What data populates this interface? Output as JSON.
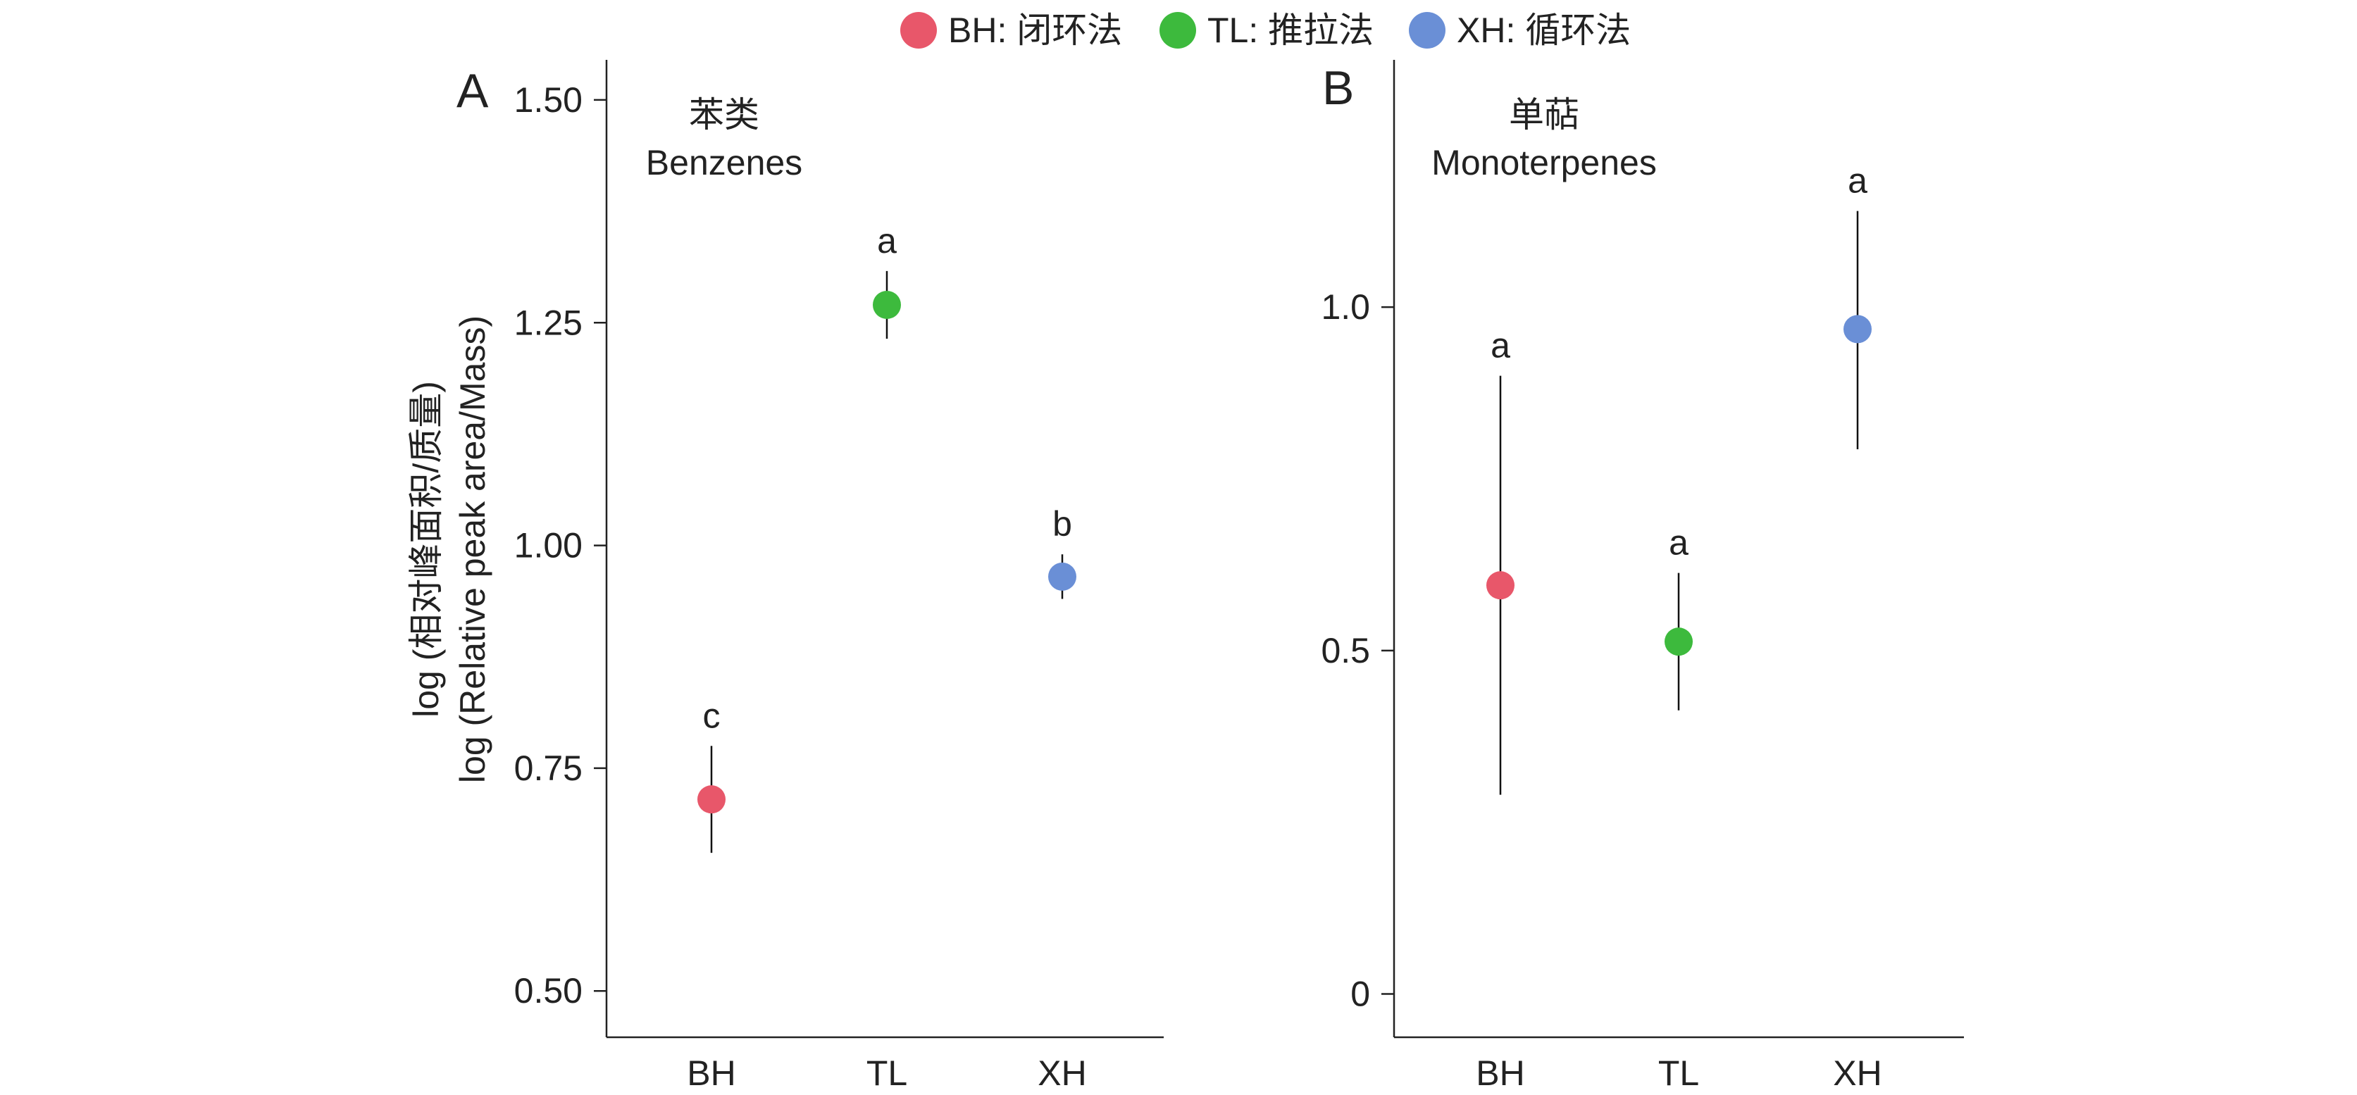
{
  "legend": {
    "items": [
      {
        "label": "BH: 闭环法",
        "color": "#e8576a"
      },
      {
        "label": "TL: 推拉法",
        "color": "#3dba3d"
      },
      {
        "label": "XH: 循环法",
        "color": "#6a8fd6"
      }
    ]
  },
  "ylabel": {
    "line1": "log (相对峰面积/质量)",
    "line2": "log (Relative peak area/Mass)"
  },
  "chart_data": [
    {
      "type": "scatter",
      "panel": "A",
      "title_cn": "苯类",
      "title_en": "Benzenes",
      "categories": [
        "BH",
        "TL",
        "XH"
      ],
      "values": [
        0.715,
        1.27,
        0.965
      ],
      "error_low": [
        0.655,
        1.232,
        0.94
      ],
      "error_high": [
        0.775,
        1.308,
        0.99
      ],
      "significance": [
        "c",
        "a",
        "b"
      ],
      "ylim": [
        0.448,
        1.545
      ],
      "yticks": [
        0.5,
        0.75,
        1.0,
        1.25,
        1.5
      ],
      "ytick_labels": [
        "0.50",
        "0.75",
        "1.00",
        "1.25",
        "1.50"
      ],
      "grid": false
    },
    {
      "type": "scatter",
      "panel": "B",
      "title_cn": "单萜",
      "title_en": "Monoterpenes",
      "categories": [
        "BH",
        "TL",
        "XH"
      ],
      "values": [
        0.595,
        0.513,
        0.968
      ],
      "error_low": [
        0.29,
        0.413,
        0.793
      ],
      "error_high": [
        0.9,
        0.613,
        1.14
      ],
      "significance": [
        "a",
        "a",
        "a"
      ],
      "ylim": [
        -0.063,
        1.36
      ],
      "yticks": [
        0,
        0.5,
        1.0
      ],
      "ytick_labels": [
        "0",
        "0.5",
        "1.0"
      ],
      "grid": false
    }
  ]
}
